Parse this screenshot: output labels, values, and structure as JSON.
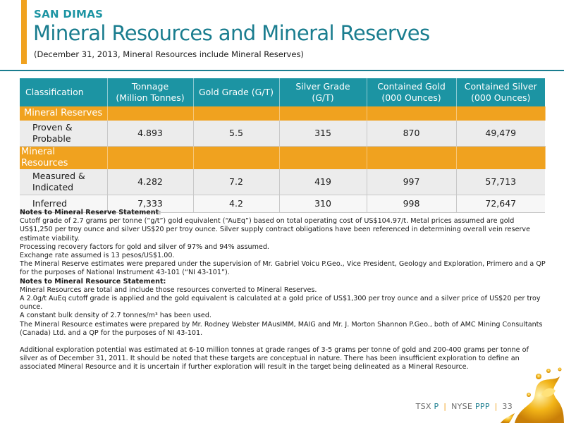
{
  "header": {
    "subtitle": "SAN DIMAS",
    "title": "Mineral Resources and Mineral Reserves",
    "date_note": "(December 31, 2013, Mineral Resources include Mineral Reserves)"
  },
  "table": {
    "headers": {
      "classification": "Classification",
      "tonnage_1": "Tonnage",
      "tonnage_2": "(Million Tonnes)",
      "gold_grade": "Gold Grade (G/T)",
      "silver_grade_1": "Silver Grade",
      "silver_grade_2": "(G/T)",
      "contained_gold_1": "Contained Gold",
      "contained_gold_2": "(000 Ounces)",
      "contained_silver_1": "Contained Silver",
      "contained_silver_2": "(000 Ounces)"
    },
    "sections": [
      {
        "title": "Mineral Reserves",
        "rows": [
          {
            "label_1": "Proven &",
            "label_2": "Probable",
            "tonnage": "4.893",
            "gold_grade": "5.5",
            "silver_grade": "315",
            "contained_gold": "870",
            "contained_silver": "49,479"
          }
        ]
      },
      {
        "title": "Mineral Resources",
        "rows": [
          {
            "label_1": "Measured &",
            "label_2": "Indicated",
            "tonnage": "4.282",
            "gold_grade": "7.2",
            "silver_grade": "419",
            "contained_gold": "997",
            "contained_silver": "57,713"
          },
          {
            "label_1": "Inferred",
            "label_2": "",
            "tonnage": "7,333",
            "gold_grade": "4.2",
            "silver_grade": "310",
            "contained_gold": "998",
            "contained_silver": "72,647"
          }
        ]
      }
    ]
  },
  "notes": {
    "reserve_heading": "Notes to Mineral Reserve Statement",
    "reserve_heading_colon": ":",
    "reserve_lines": [
      "Cutoff grade of 2.7 grams per tonne (“g/t”) gold equivalent (“AuEq”) based on total operating cost of US$104.97/t.  Metal prices assumed are gold US$1,250 per troy ounce and silver US$20 per troy ounce. Silver supply contract obligations have been referenced in determining overall vein reserve estimate viability.",
      "Processing recovery factors for gold and silver of 97% and 94% assumed.",
      "Exchange rate assumed is 13 pesos/US$1.00.",
      "The Mineral Reserve estimates were prepared under the supervision of Mr. Gabriel Voicu P.Geo., Vice President, Geology and Exploration, Primero and a QP for the purposes of National Instrument 43-101 (“NI 43-101”)."
    ],
    "resource_heading": "Notes to Mineral Resource Statement:",
    "resource_lines": [
      "Mineral Resources are total and include those resources converted to Mineral Reserves.",
      "A 2.0g/t AuEq cutoff grade is applied and the gold equivalent is calculated at a gold price of US$1,300 per troy ounce and a silver price of US$20 per troy ounce.",
      "A constant bulk density of 2.7 tonnes/m³ has been used.",
      "The Mineral Resource estimates were prepared by Mr. Rodney Webster MAusIMM, MAIG and Mr. J. Morton Shannon P.Geo., both of AMC Mining Consultants (Canada) Ltd. and a QP for the purposes of NI 43-101."
    ],
    "additional": "Additional exploration potential was estimated at 6-10 million tonnes at grade ranges of 3-5 grams per tonne of gold and 200-400 grams per tonne of silver as of December 31, 2011.  It should be noted that these targets are conceptual in nature. There has been insufficient exploration to define an associated Mineral Resource and it is uncertain if further exploration will result in the target being delineated as a Mineral Resource."
  },
  "footer": {
    "tsx": "TSX",
    "tsx_sym": "P",
    "nyse": "NYSE",
    "nyse_sym": "PPP",
    "page": "33",
    "sep": "|"
  },
  "colors": {
    "teal": "#1c94a3",
    "dark_teal": "#1a7d8f",
    "orange": "#f0a21f"
  },
  "icons": {
    "decoration": "gold-splash-graphic"
  }
}
